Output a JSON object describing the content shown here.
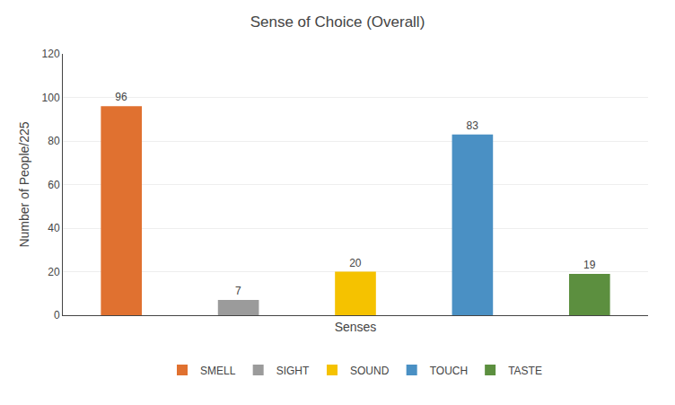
{
  "chart_data": {
    "type": "bar",
    "title": "Sense of Choice (Overall)",
    "xlabel": "Senses",
    "ylabel": "Number of People/225",
    "categories": [
      "SMELL",
      "SIGHT",
      "SOUND",
      "TOUCH",
      "TASTE"
    ],
    "values": [
      96,
      7,
      20,
      83,
      19
    ],
    "colors": [
      "#E07130",
      "#9B9B9B",
      "#F5C200",
      "#4A90C4",
      "#5C8F3F"
    ],
    "ylim": [
      0,
      120
    ],
    "yticks": [
      0,
      20,
      40,
      60,
      80,
      100,
      120
    ],
    "grid": true,
    "data_labels": true,
    "legend": "bottom",
    "tick_labels": "y"
  }
}
